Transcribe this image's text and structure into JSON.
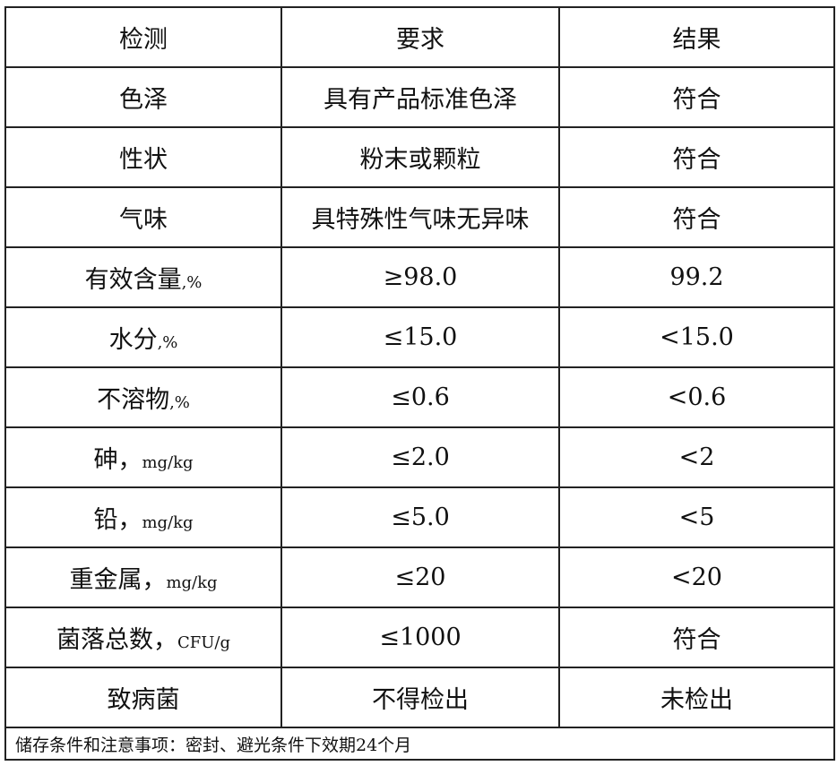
{
  "header": [
    "检测",
    "要求",
    "结果"
  ],
  "rows": [
    {
      "item": "色泽",
      "unit": "",
      "requirement": "具有产品标准色泽",
      "result": "符合"
    },
    {
      "item": "性状",
      "unit": "",
      "requirement": "粉末或颗粒",
      "result": "符合"
    },
    {
      "item": "气味",
      "unit": "",
      "requirement": "具特殊性气味无异味",
      "result": "符合"
    },
    {
      "item": "有效含量",
      "unit": ",%",
      "requirement": "≥98.0",
      "result": "99.2"
    },
    {
      "item": "水分",
      "unit": ",%",
      "requirement": "≤15.0",
      "result": "<15.0"
    },
    {
      "item": "不溶物",
      "unit": ",%",
      "requirement": "≤0.6",
      "result": "<0.6"
    },
    {
      "item": "砷，",
      "unit": "mg/kg",
      "requirement": "≤2.0",
      "result": "<2"
    },
    {
      "item": "铅，",
      "unit": "mg/kg",
      "requirement": "≤5.0",
      "result": "<5"
    },
    {
      "item": "重金属，",
      "unit": "mg/kg",
      "requirement": "≤20",
      "result": "<20"
    },
    {
      "item": "菌落总数，",
      "unit": "CFU/g",
      "requirement": "≤1000",
      "result": "符合"
    },
    {
      "item": "致病菌",
      "unit": "",
      "requirement": "不得检出",
      "result": "未检出"
    }
  ],
  "footer": "储存条件和注意事项：密封、避光条件下效期24个月"
}
